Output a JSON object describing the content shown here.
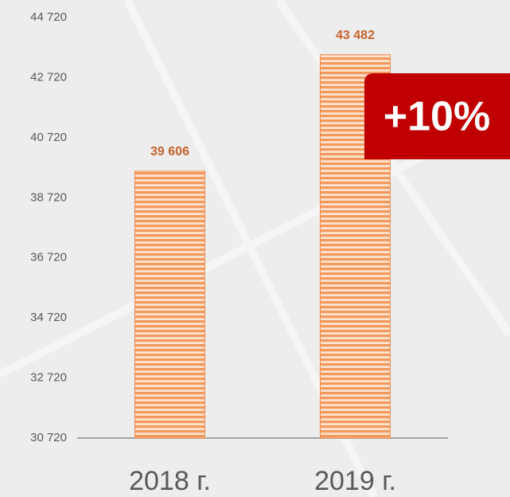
{
  "chart_data": {
    "type": "bar",
    "categories": [
      "2018 г.",
      "2019 г."
    ],
    "values": [
      39606,
      43482
    ],
    "value_labels": [
      "39 606",
      "43 482"
    ],
    "color": "#f4a06a",
    "ylim": [
      30720,
      44720
    ],
    "yticks": [
      {
        "value": 30720,
        "label": "30 720"
      },
      {
        "value": 32720,
        "label": "32 720"
      },
      {
        "value": 34720,
        "label": "34 720"
      },
      {
        "value": 36720,
        "label": "36 720"
      },
      {
        "value": 38720,
        "label": "38 720"
      },
      {
        "value": 40720,
        "label": "40 720"
      },
      {
        "value": 42720,
        "label": "42 720"
      },
      {
        "value": 44720,
        "label": "44 720"
      }
    ],
    "grid": false,
    "annotation": "+10%"
  }
}
